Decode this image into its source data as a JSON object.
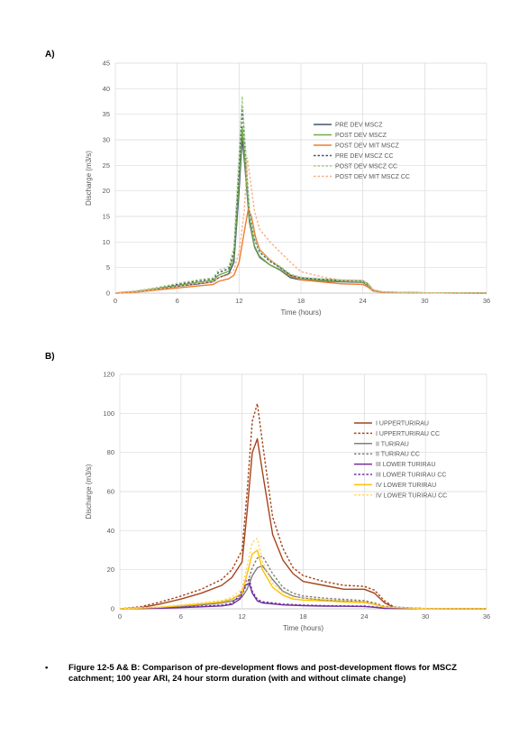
{
  "panels": {
    "a_label": "A)",
    "b_label": "B)"
  },
  "caption": {
    "bullet": "•",
    "text": "Figure 12-5 A& B: Comparison of pre-development flows and post-development flows for MSCZ catchment; 100 year ARI, 24 hour storm duration (with and without climate change)"
  },
  "chart_data": [
    {
      "type": "line",
      "title": "",
      "xlabel": "Time (hours)",
      "ylabel": "Discharge (m3/s)",
      "xlim": [
        0,
        36
      ],
      "ylim": [
        0,
        45
      ],
      "xticks": [
        0,
        6,
        12,
        18,
        24,
        30,
        36
      ],
      "yticks": [
        0,
        5,
        10,
        15,
        20,
        25,
        30,
        35,
        40,
        45
      ],
      "grid": true,
      "legend_position": "right",
      "series": [
        {
          "name": "PRE DEV MSCZ",
          "color": "#44546A",
          "dashed": false,
          "x": [
            0,
            2,
            4,
            6,
            8,
            9.5,
            10,
            11,
            11.5,
            12,
            12.3,
            12.6,
            13,
            13.5,
            14,
            15,
            16,
            17,
            18,
            20,
            22,
            24,
            24.5,
            25,
            26,
            30,
            36
          ],
          "y": [
            0,
            0.3,
            0.8,
            1.3,
            1.8,
            2.2,
            3,
            3.8,
            6,
            20,
            30.5,
            24,
            14,
            9,
            7,
            5.5,
            4.5,
            3,
            2.6,
            2.4,
            2.2,
            2.1,
            1.5,
            0.5,
            0.2,
            0.05,
            0
          ]
        },
        {
          "name": "POST DEV MSCZ",
          "color": "#70AD47",
          "dashed": false,
          "x": [
            0,
            2,
            4,
            6,
            8,
            9.5,
            10,
            11,
            11.5,
            12,
            12.3,
            12.6,
            13,
            13.5,
            14,
            15,
            16,
            17,
            18,
            20,
            22,
            24,
            24.5,
            25,
            26,
            30,
            36
          ],
          "y": [
            0,
            0.3,
            0.9,
            1.5,
            2.1,
            2.5,
            3.5,
            4.3,
            7,
            22,
            32.5,
            25,
            14.5,
            9.2,
            7.2,
            5.5,
            4.6,
            3.2,
            2.8,
            2.5,
            2.3,
            2.2,
            1.6,
            0.6,
            0.2,
            0.05,
            0
          ]
        },
        {
          "name": "POST DEV MIT MSCZ",
          "color": "#ED7D31",
          "dashed": false,
          "x": [
            0,
            2,
            4,
            6,
            8,
            9.5,
            10,
            11,
            11.5,
            12,
            12.5,
            12.9,
            13.2,
            13.6,
            14,
            15,
            16,
            17,
            18,
            20,
            22,
            24,
            24.5,
            25,
            26,
            30,
            36
          ],
          "y": [
            0,
            0.2,
            0.6,
            1,
            1.4,
            1.7,
            2.3,
            2.8,
            3.5,
            6,
            12,
            16.5,
            15,
            11,
            8.5,
            6.5,
            5,
            3.5,
            2.6,
            2.2,
            1.8,
            1.7,
            1.2,
            0.4,
            0.1,
            0.05,
            0
          ]
        },
        {
          "name": "PRE DEV MSCZ CC",
          "color": "#44546A",
          "dashed": true,
          "x": [
            0,
            2,
            4,
            6,
            8,
            9.5,
            10,
            11,
            11.5,
            12,
            12.3,
            12.6,
            13,
            13.5,
            14,
            15,
            16,
            17,
            18,
            20,
            22,
            24,
            24.5,
            25,
            26,
            30,
            36
          ],
          "y": [
            0,
            0.4,
            1,
            1.7,
            2.4,
            2.8,
            4,
            4.8,
            8,
            25,
            36.5,
            28,
            16,
            10.5,
            8,
            6.2,
            5,
            3.5,
            3,
            2.7,
            2.5,
            2.4,
            1.8,
            0.6,
            0.2,
            0.05,
            0
          ]
        },
        {
          "name": "POST DEV MSCZ CC",
          "color": "#A9D18E",
          "dashed": true,
          "x": [
            0,
            2,
            4,
            6,
            8,
            9.5,
            10,
            11,
            11.5,
            12,
            12.3,
            12.6,
            13,
            13.5,
            14,
            15,
            16,
            17,
            18,
            20,
            22,
            24,
            24.5,
            25,
            26,
            30,
            36
          ],
          "y": [
            0,
            0.4,
            1.1,
            1.9,
            2.6,
            3,
            4.5,
            5.2,
            9,
            27,
            38.5,
            29,
            16.5,
            10.8,
            8.3,
            6.4,
            5.2,
            3.7,
            3.1,
            2.8,
            2.6,
            2.5,
            1.9,
            0.7,
            0.2,
            0.05,
            0
          ]
        },
        {
          "name": "POST DEV MIT MSCZ CC",
          "color": "#F4B183",
          "dashed": true,
          "x": [
            0,
            2,
            4,
            6,
            8,
            9.5,
            10,
            11,
            11.5,
            12,
            12.5,
            12.8,
            13.1,
            13.5,
            14,
            15,
            16,
            17,
            18,
            20,
            22,
            24,
            24.5,
            25,
            26,
            30,
            36
          ],
          "y": [
            0,
            0.3,
            0.8,
            1.3,
            1.9,
            2.2,
            3,
            3.6,
            4.5,
            8,
            16,
            26.5,
            22,
            16,
            12.5,
            10,
            8,
            6,
            4.2,
            3.2,
            2.5,
            2.3,
            1.6,
            0.6,
            0.2,
            0.05,
            0
          ]
        }
      ]
    },
    {
      "type": "line",
      "title": "",
      "xlabel": "Time (hours)",
      "ylabel": "Discharge (m3/s)",
      "xlim": [
        0,
        36
      ],
      "ylim": [
        0,
        120
      ],
      "xticks": [
        0,
        6,
        12,
        18,
        24,
        30,
        36
      ],
      "yticks": [
        0,
        20,
        40,
        60,
        80,
        100,
        120
      ],
      "grid": true,
      "legend_position": "right",
      "series": [
        {
          "name": "I UPPERTURIRAU",
          "color": "#A5441B",
          "dashed": false,
          "x": [
            0,
            2,
            4,
            6,
            8,
            10,
            11,
            12,
            12.5,
            13,
            13.5,
            14,
            15,
            16,
            17,
            18,
            20,
            22,
            24,
            25,
            26,
            27,
            30,
            36
          ],
          "y": [
            0,
            0.5,
            2.5,
            5,
            8,
            12,
            16,
            24,
            50,
            80,
            87,
            70,
            38,
            25,
            18,
            14,
            12,
            10,
            10,
            8,
            3,
            0.5,
            0.1,
            0
          ]
        },
        {
          "name": "I UPPERTURIRAU CC",
          "color": "#A5441B",
          "dashed": true,
          "x": [
            0,
            2,
            4,
            6,
            8,
            10,
            11,
            12,
            12.5,
            13,
            13.5,
            14,
            15,
            16,
            17,
            18,
            20,
            22,
            24,
            25,
            26,
            27,
            30,
            36
          ],
          "y": [
            0,
            1,
            3.5,
            6.5,
            10,
            15,
            20,
            30,
            60,
            96,
            105,
            85,
            47,
            31,
            21,
            17,
            14,
            12,
            11.5,
            9.5,
            4,
            0.6,
            0.1,
            0
          ]
        },
        {
          "name": "II TURIRAU",
          "color": "#7F7F7F",
          "dashed": false,
          "x": [
            0,
            4,
            6,
            8,
            10,
            11,
            12,
            12.5,
            13,
            13.5,
            14,
            15,
            16,
            17,
            18,
            20,
            22,
            24,
            25,
            26,
            30,
            36
          ],
          "y": [
            0,
            0.5,
            1,
            2,
            3,
            4,
            6,
            10,
            17,
            21,
            22,
            15,
            9,
            6.5,
            5.5,
            4.5,
            4,
            3.5,
            2.5,
            1,
            0.1,
            0
          ]
        },
        {
          "name": "II TURIRAU CC",
          "color": "#7F7F7F",
          "dashed": true,
          "x": [
            0,
            4,
            6,
            8,
            10,
            11,
            12,
            12.5,
            13,
            13.5,
            14,
            15,
            16,
            17,
            18,
            20,
            22,
            24,
            25,
            26,
            30,
            36
          ],
          "y": [
            0,
            0.8,
            1.5,
            2.6,
            3.8,
            5,
            7.5,
            12.5,
            21,
            26,
            27,
            18,
            11,
            8,
            6.5,
            5.5,
            4.8,
            4.2,
            3,
            1.2,
            0.1,
            0
          ]
        },
        {
          "name": "III LOWER TURIRAU",
          "color": "#7030A0",
          "dashed": false,
          "x": [
            0,
            4,
            6,
            8,
            10,
            11,
            11.8,
            12.3,
            12.7,
            13,
            13.5,
            14,
            15,
            16,
            18,
            20,
            24,
            25,
            26,
            30,
            36
          ],
          "y": [
            0,
            0.3,
            0.6,
            1,
            1.5,
            2.2,
            5,
            12,
            13,
            8,
            4,
            3,
            2.5,
            2,
            1.6,
            1.4,
            1.2,
            0.8,
            0.2,
            0.05,
            0
          ]
        },
        {
          "name": "III LOWER TURIRAU CC",
          "color": "#7030A0",
          "dashed": true,
          "x": [
            0,
            4,
            6,
            8,
            10,
            11,
            11.8,
            12.3,
            12.7,
            13,
            13.5,
            14,
            15,
            16,
            18,
            20,
            24,
            25,
            26,
            30,
            36
          ],
          "y": [
            0,
            0.4,
            0.8,
            1.3,
            1.9,
            2.8,
            7,
            14,
            15,
            9,
            4.8,
            3.6,
            3,
            2.4,
            1.9,
            1.6,
            1.4,
            1,
            0.3,
            0.05,
            0
          ]
        },
        {
          "name": "IV LOWER TURIRAU",
          "color": "#FFC000",
          "dashed": false,
          "x": [
            0,
            4,
            6,
            8,
            10,
            11,
            12,
            12.5,
            13,
            13.5,
            14,
            15,
            16,
            17,
            18,
            20,
            22,
            24,
            25,
            26,
            30,
            36
          ],
          "y": [
            0,
            0.8,
            1.6,
            2.5,
            3.5,
            5,
            8,
            18,
            28,
            30,
            20,
            11,
            7,
            5,
            4.5,
            4,
            3.5,
            3.2,
            2.2,
            0.8,
            0.1,
            0
          ]
        },
        {
          "name": "IV LOWER TURIRAU CC",
          "color": "#FFD966",
          "dashed": true,
          "x": [
            0,
            4,
            6,
            8,
            10,
            11,
            12,
            12.5,
            13,
            13.5,
            14,
            15,
            16,
            17,
            18,
            20,
            22,
            24,
            25,
            26,
            30,
            36
          ],
          "y": [
            0,
            1,
            2,
            3,
            4.3,
            6,
            10,
            22,
            34,
            36,
            24,
            13,
            8.5,
            6,
            5.5,
            4.8,
            4.2,
            3.8,
            2.6,
            1,
            0.1,
            0
          ]
        }
      ]
    }
  ]
}
